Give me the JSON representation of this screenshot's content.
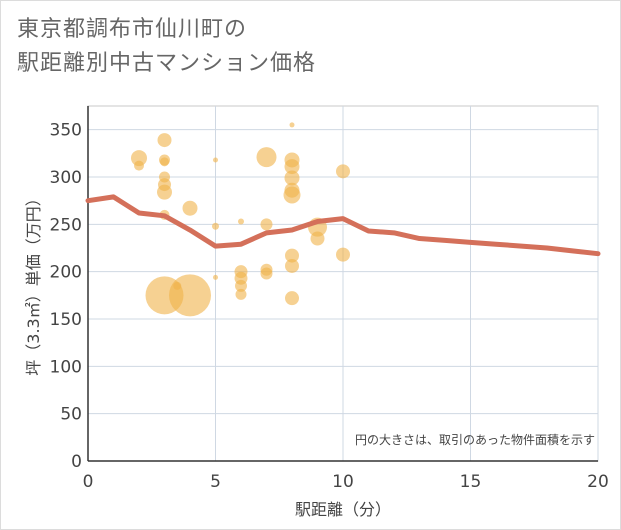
{
  "chart_data": {
    "type": "scatter",
    "title_line1": "東京都調布市仙川町の",
    "title_line2": "駅距離別中古マンション価格",
    "xlabel": "駅距離（分）",
    "ylabel": "坪（3.3㎡）単価（万円）",
    "xlim": [
      0,
      20
    ],
    "ylim": [
      0,
      375
    ],
    "xticks": [
      0,
      5,
      10,
      15,
      20
    ],
    "yticks": [
      0,
      50,
      100,
      150,
      200,
      250,
      300,
      350
    ],
    "note": "円の大きさは、取引のあった物件面積を示す",
    "bubble_color": "#f0b24a",
    "line_color": "#d4705a",
    "points": [
      {
        "x": 2,
        "y": 320,
        "s": 16
      },
      {
        "x": 2,
        "y": 312,
        "s": 10
      },
      {
        "x": 3,
        "y": 339,
        "s": 14
      },
      {
        "x": 3,
        "y": 318,
        "s": 11
      },
      {
        "x": 3,
        "y": 316,
        "s": 9
      },
      {
        "x": 3,
        "y": 300,
        "s": 11
      },
      {
        "x": 3,
        "y": 292,
        "s": 13
      },
      {
        "x": 3,
        "y": 284,
        "s": 15
      },
      {
        "x": 3,
        "y": 260,
        "s": 10
      },
      {
        "x": 3,
        "y": 175,
        "s": 38
      },
      {
        "x": 3.5,
        "y": 185,
        "s": 8
      },
      {
        "x": 4,
        "y": 175,
        "s": 42
      },
      {
        "x": 4,
        "y": 267,
        "s": 15
      },
      {
        "x": 5,
        "y": 318,
        "s": 5
      },
      {
        "x": 5,
        "y": 248,
        "s": 7
      },
      {
        "x": 5,
        "y": 194,
        "s": 5
      },
      {
        "x": 6,
        "y": 253,
        "s": 6
      },
      {
        "x": 6,
        "y": 200,
        "s": 13
      },
      {
        "x": 6,
        "y": 193,
        "s": 13
      },
      {
        "x": 6,
        "y": 185,
        "s": 12
      },
      {
        "x": 6,
        "y": 176,
        "s": 11
      },
      {
        "x": 7,
        "y": 321,
        "s": 20
      },
      {
        "x": 7,
        "y": 250,
        "s": 12
      },
      {
        "x": 7,
        "y": 202,
        "s": 12
      },
      {
        "x": 7,
        "y": 198,
        "s": 12
      },
      {
        "x": 8,
        "y": 355,
        "s": 5
      },
      {
        "x": 8,
        "y": 318,
        "s": 15
      },
      {
        "x": 8,
        "y": 311,
        "s": 15
      },
      {
        "x": 8,
        "y": 299,
        "s": 15
      },
      {
        "x": 8,
        "y": 286,
        "s": 15
      },
      {
        "x": 8,
        "y": 281,
        "s": 17
      },
      {
        "x": 8,
        "y": 217,
        "s": 14
      },
      {
        "x": 8,
        "y": 206,
        "s": 14
      },
      {
        "x": 8,
        "y": 172,
        "s": 14
      },
      {
        "x": 9,
        "y": 247,
        "s": 19
      },
      {
        "x": 9,
        "y": 235,
        "s": 14
      },
      {
        "x": 10,
        "y": 306,
        "s": 14
      },
      {
        "x": 10,
        "y": 218,
        "s": 14
      }
    ],
    "line": {
      "x": [
        0,
        1,
        2,
        3,
        4,
        5,
        6,
        7,
        8,
        9,
        10,
        11,
        12,
        13,
        14,
        15,
        16,
        17,
        18,
        19,
        20
      ],
      "y": [
        275,
        279,
        262,
        259,
        244,
        227,
        229,
        241,
        244,
        253,
        256,
        243,
        241,
        235,
        233,
        231,
        229,
        227,
        225,
        222,
        219
      ]
    }
  }
}
